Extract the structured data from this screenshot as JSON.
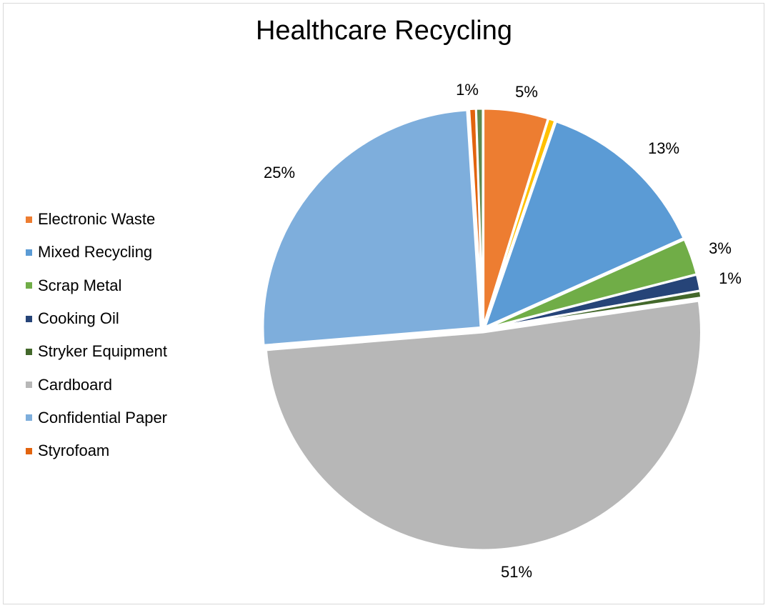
{
  "chart_data": {
    "type": "pie",
    "title": "Healthcare Recycling",
    "start_angle_deg": 0,
    "legend_position": "left",
    "slices": [
      {
        "name": "Electronic Waste",
        "value": 4.8,
        "label": "5%",
        "color": "#ED7D31"
      },
      {
        "name": "",
        "value": 0.5,
        "label": "",
        "color": "#FFC000"
      },
      {
        "name": "Mixed Recycling",
        "value": 13.0,
        "label": "13%",
        "color": "#5B9BD5"
      },
      {
        "name": "Scrap Metal",
        "value": 2.7,
        "label": "3%",
        "color": "#70AD47"
      },
      {
        "name": "Cooking Oil",
        "value": 1.2,
        "label": "1%",
        "color": "#264478"
      },
      {
        "name": "Stryker Equipment",
        "value": 0.5,
        "label": "",
        "color": "#43682B"
      },
      {
        "name": "Cardboard",
        "value": 51.0,
        "label": "51%",
        "color": "#B7B7B7"
      },
      {
        "name": "Confidential Paper",
        "value": 25.3,
        "label": "25%",
        "color": "#7EAEDC"
      },
      {
        "name": "Styrofoam",
        "value": 0.5,
        "label": "1%",
        "color": "#E2640E"
      },
      {
        "name": "",
        "value": 0.5,
        "label": "",
        "color": "#5E8A4C"
      }
    ],
    "legend": [
      {
        "name": "Electronic Waste",
        "color": "#ED7D31"
      },
      {
        "name": "Mixed Recycling",
        "color": "#5B9BD5"
      },
      {
        "name": "Scrap Metal",
        "color": "#70AD47"
      },
      {
        "name": "Cooking Oil",
        "color": "#264478"
      },
      {
        "name": "Stryker Equipment",
        "color": "#43682B"
      },
      {
        "name": "Cardboard",
        "color": "#B7B7B7"
      },
      {
        "name": "Confidential Paper",
        "color": "#7EAEDC"
      },
      {
        "name": "Styrofoam",
        "color": "#E2640E"
      }
    ]
  }
}
